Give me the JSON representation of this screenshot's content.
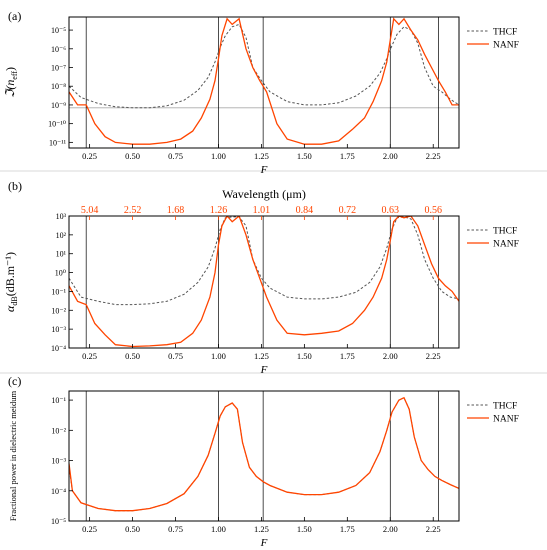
{
  "colors": {
    "thcf": "#555555",
    "nanf": "#ff4500",
    "frame": "#000000",
    "vline": "#000000",
    "hline": "#aaaaaa"
  },
  "chart_data": [
    {
      "type": "line",
      "panel_label": "(a)",
      "xlabel": "F",
      "ylabel_main": "ℑ(n",
      "ylabel_sub": "eff",
      "ylabel_close": ")",
      "log_y": true,
      "xlim": [
        0.13,
        2.4
      ],
      "ylim": [
        5e-12,
        5e-05
      ],
      "yticks": [
        1e-11,
        1e-10,
        1e-09,
        1e-08,
        1e-07,
        1e-06,
        1e-05
      ],
      "ytick_labels": [
        "10⁻¹¹",
        "10⁻¹⁰",
        "10⁻⁹",
        "10⁻⁸",
        "10⁻⁷",
        "10⁻⁶",
        "10⁻⁵"
      ],
      "xticks": [
        0.25,
        0.5,
        0.75,
        1.0,
        1.25,
        1.5,
        1.75,
        2.0,
        2.25
      ],
      "xtick_labels": [
        "0.25",
        "0.50",
        "0.75",
        "1.00",
        "1.25",
        "1.50",
        "1.75",
        "2.00",
        "2.25"
      ],
      "show_xlabel": true,
      "vlines": [
        0.23,
        1.0,
        1.26,
        2.0,
        2.28
      ],
      "hline": 7e-10,
      "legend": [
        "THCF",
        "NANF"
      ],
      "legend_position": "right-top",
      "series": [
        {
          "name": "THCF",
          "style": "dashed",
          "x": [
            0.13,
            0.2,
            0.3,
            0.4,
            0.5,
            0.6,
            0.7,
            0.8,
            0.88,
            0.94,
            0.98,
            1.01,
            1.04,
            1.08,
            1.12,
            1.16,
            1.2,
            1.25,
            1.3,
            1.4,
            1.5,
            1.6,
            1.7,
            1.8,
            1.88,
            1.94,
            1.98,
            2.01,
            2.04,
            2.08,
            2.12,
            2.16,
            2.2,
            2.25,
            2.3,
            2.35,
            2.4
          ],
          "y": [
            1e-08,
            2.5e-09,
            1.2e-09,
            8e-10,
            7e-10,
            7e-10,
            9e-10,
            1.8e-09,
            6e-09,
            3e-08,
            2e-07,
            1.2e-06,
            5e-06,
            1.5e-05,
            2e-05,
            4e-06,
            1e-07,
            2e-08,
            5e-09,
            1.5e-09,
            1e-09,
            1e-09,
            1.3e-09,
            3e-09,
            1e-08,
            5e-08,
            3e-07,
            1.5e-06,
            6e-06,
            1.5e-05,
            1e-05,
            2e-06,
            1e-07,
            1e-08,
            5e-09,
            2e-09,
            1e-09
          ]
        },
        {
          "name": "NANF",
          "style": "solid",
          "x": [
            0.13,
            0.18,
            0.23,
            0.28,
            0.34,
            0.4,
            0.5,
            0.6,
            0.7,
            0.78,
            0.85,
            0.9,
            0.95,
            0.98,
            1.0,
            1.02,
            1.05,
            1.08,
            1.12,
            1.16,
            1.2,
            1.24,
            1.28,
            1.34,
            1.4,
            1.5,
            1.6,
            1.7,
            1.78,
            1.85,
            1.9,
            1.95,
            1.98,
            2.0,
            2.02,
            2.05,
            2.08,
            2.12,
            2.16,
            2.2,
            2.24,
            2.28,
            2.32,
            2.36,
            2.4
          ],
          "y": [
            5e-09,
            1e-09,
            1e-09,
            1e-10,
            2e-11,
            1e-11,
            8e-12,
            8e-12,
            1e-11,
            1.5e-11,
            4e-11,
            2e-10,
            2e-09,
            2e-08,
            3e-07,
            5e-06,
            4e-05,
            2e-05,
            4e-05,
            1e-06,
            1e-07,
            2e-08,
            5e-09,
            1e-10,
            1.5e-11,
            8e-12,
            8e-12,
            1.2e-11,
            5e-11,
            2e-10,
            1.5e-09,
            2e-08,
            2e-07,
            3e-06,
            4e-05,
            2e-05,
            4e-05,
            1e-05,
            3e-06,
            5e-07,
            1e-07,
            2e-08,
            5e-09,
            1e-09,
            1e-09
          ]
        }
      ]
    },
    {
      "type": "line",
      "panel_label": "(b)",
      "xlabel": "F",
      "top_axis_title": "Wavelength (μm)",
      "ylabel_main": "α",
      "ylabel_sub": "dB",
      "ylabel_close": "(dB.m⁻¹)",
      "log_y": true,
      "xlim": [
        0.13,
        2.4
      ],
      "ylim": [
        0.0001,
        1000.0
      ],
      "yticks": [
        0.0001,
        0.001,
        0.01,
        0.1,
        1,
        10,
        100,
        1000
      ],
      "ytick_labels": [
        "10⁻⁴",
        "10⁻³",
        "10⁻²",
        "10⁻¹",
        "10⁰",
        "10¹",
        "10²",
        "10³"
      ],
      "xticks": [
        0.25,
        0.5,
        0.75,
        1.0,
        1.25,
        1.5,
        1.75,
        2.0,
        2.25
      ],
      "xtick_labels": [
        "0.25",
        "0.50",
        "0.75",
        "1.00",
        "1.25",
        "1.50",
        "1.75",
        "2.00",
        "2.25"
      ],
      "top_ticks": [
        0.25,
        0.5,
        0.75,
        1.0,
        1.25,
        1.5,
        1.75,
        2.0,
        2.25
      ],
      "top_tick_labels": [
        "5.04",
        "2.52",
        "1.68",
        "1.26",
        "1.01",
        "0.84",
        "0.72",
        "0.63",
        "0.56"
      ],
      "show_xlabel": true,
      "vlines": [
        0.23,
        1.0,
        1.26,
        2.0,
        2.28
      ],
      "legend": [
        "THCF",
        "NANF"
      ],
      "legend_position": "right-top",
      "series": [
        {
          "name": "THCF",
          "style": "dashed",
          "x": [
            0.13,
            0.2,
            0.3,
            0.4,
            0.5,
            0.6,
            0.7,
            0.8,
            0.88,
            0.94,
            0.98,
            1.01,
            1.04,
            1.08,
            1.12,
            1.16,
            1.2,
            1.25,
            1.3,
            1.4,
            1.5,
            1.6,
            1.7,
            1.8,
            1.88,
            1.94,
            1.98,
            2.01,
            2.04,
            2.08,
            2.12,
            2.16,
            2.2,
            2.25,
            2.3,
            2.35,
            2.4
          ],
          "y": [
            0.5,
            0.05,
            0.03,
            0.02,
            0.02,
            0.022,
            0.03,
            0.07,
            0.3,
            2,
            20,
            200,
            800,
            900,
            900,
            300,
            5,
            0.5,
            0.15,
            0.05,
            0.04,
            0.04,
            0.05,
            0.09,
            0.3,
            2,
            20,
            200,
            800,
            900,
            700,
            100,
            5,
            0.5,
            0.1,
            0.05,
            0.04
          ]
        },
        {
          "name": "NANF",
          "style": "solid",
          "x": [
            0.13,
            0.18,
            0.23,
            0.28,
            0.34,
            0.4,
            0.5,
            0.6,
            0.7,
            0.78,
            0.85,
            0.9,
            0.95,
            0.98,
            1.0,
            1.02,
            1.05,
            1.08,
            1.12,
            1.16,
            1.2,
            1.24,
            1.28,
            1.34,
            1.4,
            1.5,
            1.6,
            1.7,
            1.78,
            1.85,
            1.9,
            1.95,
            1.98,
            2.0,
            2.02,
            2.05,
            2.08,
            2.12,
            2.16,
            2.2,
            2.24,
            2.28,
            2.32,
            2.36,
            2.4
          ],
          "y": [
            0.2,
            0.03,
            0.02,
            0.002,
            0.0005,
            0.00015,
            0.00012,
            0.00013,
            0.00015,
            0.0002,
            0.0006,
            0.003,
            0.05,
            1,
            30,
            300,
            1000,
            500,
            1000,
            100,
            5,
            0.5,
            0.05,
            0.003,
            0.0006,
            0.0005,
            0.0006,
            0.0008,
            0.002,
            0.01,
            0.05,
            0.5,
            5,
            50,
            500,
            1000,
            800,
            1000,
            300,
            30,
            3,
            0.5,
            0.2,
            0.1,
            0.03
          ]
        }
      ]
    },
    {
      "type": "line",
      "panel_label": "(c)",
      "xlabel": "F",
      "ylabel_main": "Fractional power in dielectric meidum",
      "ylabel_sub": "",
      "ylabel_close": "",
      "log_y": true,
      "xlim": [
        0.13,
        2.4
      ],
      "ylim": [
        1e-05,
        0.2
      ],
      "yticks": [
        1e-05,
        0.0001,
        0.001,
        0.01,
        0.1
      ],
      "ytick_labels": [
        "10⁻⁵",
        "10⁻⁴",
        "10⁻³",
        "10⁻²",
        "10⁻¹"
      ],
      "xticks": [
        0.25,
        0.5,
        0.75,
        1.0,
        1.25,
        1.5,
        1.75,
        2.0,
        2.25
      ],
      "xtick_labels": [
        "0.25",
        "0.50",
        "0.75",
        "1.00",
        "1.25",
        "1.50",
        "1.75",
        "2.00",
        "2.25"
      ],
      "show_xlabel": true,
      "vlines": [
        0.23,
        1.0,
        1.26,
        2.0,
        2.28
      ],
      "legend": [
        "THCF",
        "NANF"
      ],
      "legend_position": "right-top",
      "series": [
        {
          "name": "THCF",
          "style": "dashed",
          "x": [
            0.13,
            0.15,
            0.2,
            0.3,
            0.4,
            0.5,
            0.6,
            0.7,
            0.8,
            0.88,
            0.94,
            0.98,
            1.01,
            1.04,
            1.08,
            1.11,
            1.14,
            1.18,
            1.22,
            1.26,
            1.3,
            1.4,
            1.5,
            1.6,
            1.7,
            1.8,
            1.88,
            1.94,
            1.98,
            2.01,
            2.05,
            2.08,
            2.11,
            2.14,
            2.18,
            2.22,
            2.26,
            2.3,
            2.35,
            2.4
          ],
          "y": [
            0.0006,
            0.0001,
            4e-05,
            2.6e-05,
            2.2e-05,
            2.2e-05,
            2.6e-05,
            3.8e-05,
            8e-05,
            0.0003,
            0.0015,
            0.008,
            0.03,
            0.06,
            0.08,
            0.05,
            0.004,
            0.0006,
            0.0003,
            0.0002,
            0.00015,
            9e-05,
            7.5e-05,
            7.5e-05,
            9e-05,
            0.00015,
            0.0004,
            0.002,
            0.01,
            0.04,
            0.1,
            0.12,
            0.05,
            0.006,
            0.001,
            0.0005,
            0.0003,
            0.00022,
            0.00016,
            0.00012
          ]
        },
        {
          "name": "NANF",
          "style": "solid",
          "x": [
            0.13,
            0.15,
            0.2,
            0.3,
            0.4,
            0.5,
            0.6,
            0.7,
            0.8,
            0.88,
            0.94,
            0.98,
            1.01,
            1.04,
            1.08,
            1.11,
            1.14,
            1.18,
            1.22,
            1.26,
            1.3,
            1.4,
            1.5,
            1.6,
            1.7,
            1.8,
            1.88,
            1.94,
            1.98,
            2.01,
            2.05,
            2.08,
            2.11,
            2.14,
            2.18,
            2.22,
            2.26,
            2.3,
            2.35,
            2.4
          ],
          "y": [
            0.0008,
            0.0001,
            4e-05,
            2.6e-05,
            2.2e-05,
            2.2e-05,
            2.6e-05,
            3.8e-05,
            8e-05,
            0.0003,
            0.0015,
            0.008,
            0.03,
            0.06,
            0.08,
            0.05,
            0.004,
            0.0006,
            0.0003,
            0.0002,
            0.00015,
            9e-05,
            7.5e-05,
            7.5e-05,
            9e-05,
            0.00015,
            0.0004,
            0.002,
            0.01,
            0.04,
            0.1,
            0.12,
            0.05,
            0.006,
            0.001,
            0.0005,
            0.0003,
            0.00022,
            0.00016,
            0.00012
          ]
        }
      ]
    }
  ]
}
